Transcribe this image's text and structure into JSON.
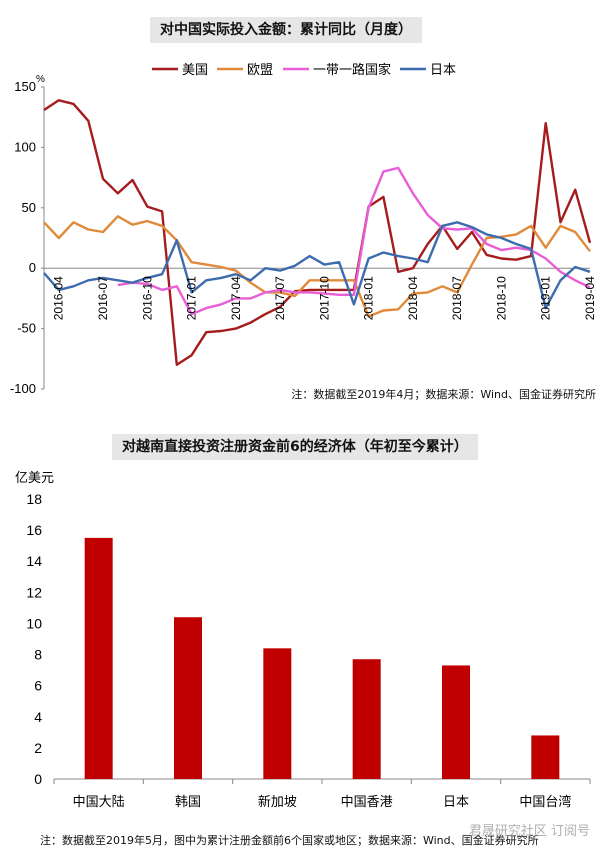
{
  "chart_data": [
    {
      "type": "line",
      "title": "对中国实际投入金额：累计同比（月度）",
      "ylabel": "%",
      "ylim": [
        -100,
        150
      ],
      "yticks": [
        150,
        100,
        50,
        0,
        -50,
        -100
      ],
      "xticks": [
        "2016-04",
        "2016-07",
        "2016-10",
        "2017-01",
        "2017-04",
        "2017-07",
        "2017-10",
        "2018-01",
        "2018-04",
        "2018-07",
        "2018-10",
        "2019-01",
        "2019-04"
      ],
      "x": [
        "2016-03",
        "2016-04",
        "2016-05",
        "2016-06",
        "2016-07",
        "2016-08",
        "2016-09",
        "2016-10",
        "2016-11",
        "2016-12",
        "2017-01",
        "2017-02",
        "2017-03",
        "2017-04",
        "2017-05",
        "2017-06",
        "2017-07",
        "2017-08",
        "2017-09",
        "2017-10",
        "2017-11",
        "2017-12",
        "2018-01",
        "2018-02",
        "2018-03",
        "2018-04",
        "2018-05",
        "2018-06",
        "2018-07",
        "2018-08",
        "2018-09",
        "2018-10",
        "2018-11",
        "2018-12",
        "2019-01",
        "2019-02",
        "2019-03",
        "2019-04"
      ],
      "legend_position": "top",
      "series": [
        {
          "name": "美国",
          "color": "#a61c1c",
          "values": [
            131,
            139,
            136,
            122,
            74,
            62,
            73,
            51,
            47,
            -80,
            -72,
            -53,
            -52,
            -50,
            -45,
            -38,
            -32,
            -19,
            -18,
            -18,
            -18,
            -18,
            51,
            59,
            -3,
            0,
            20,
            35,
            16,
            30,
            11,
            8,
            7,
            10,
            120,
            38,
            65,
            21
          ]
        },
        {
          "name": "欧盟",
          "color": "#e08a3a",
          "values": [
            38,
            25,
            38,
            32,
            30,
            43,
            36,
            39,
            35,
            23,
            5,
            3,
            1,
            -2,
            -12,
            -20,
            -20,
            -23,
            -10,
            -10,
            -10,
            -10,
            -40,
            -35,
            -34,
            -21,
            -20,
            -15,
            -20,
            3,
            25,
            26,
            28,
            35,
            17,
            35,
            30,
            14
          ]
        },
        {
          "name": "一带一路国家",
          "color": "#e85ed6",
          "values": [
            null,
            null,
            null,
            null,
            null,
            -14,
            -12,
            -13,
            -18,
            -15,
            -38,
            -33,
            -30,
            -25,
            -25,
            -20,
            -18,
            -20,
            -20,
            -21,
            -22,
            -22,
            50,
            80,
            83,
            62,
            44,
            33,
            32,
            33,
            20,
            15,
            17,
            15,
            8,
            -3,
            -10,
            -16
          ]
        },
        {
          "name": "日本",
          "color": "#3d6cae",
          "values": [
            -4,
            -18,
            -15,
            -10,
            -8,
            -10,
            -12,
            -8,
            -5,
            23,
            -20,
            -10,
            -8,
            -5,
            -10,
            0,
            -2,
            2,
            10,
            3,
            5,
            -30,
            8,
            13,
            10,
            8,
            5,
            35,
            38,
            34,
            28,
            25,
            20,
            16,
            -33,
            -10,
            1,
            -3
          ]
        }
      ],
      "annotation": "注：数据截至2019年4月；数据来源：Wind、国金证券研究所"
    },
    {
      "type": "bar",
      "title": "对越南直接投资注册资金前6的经济体（年初至今累计）",
      "ylabel": "亿美元",
      "ylim": [
        0,
        18
      ],
      "yticks": [
        0,
        2,
        4,
        6,
        8,
        10,
        12,
        14,
        16,
        18
      ],
      "categories": [
        "中国大陆",
        "韩国",
        "新加坡",
        "中国香港",
        "日本",
        "中国台湾"
      ],
      "values": [
        15.5,
        10.4,
        8.4,
        7.7,
        7.3,
        2.8
      ],
      "color": "#c00000",
      "annotation": "注：数据截至2019年5月，图中为累计注册金额前6个国家或地区；数据来源：Wind、国金证券研究所"
    }
  ],
  "watermark": "君晟研究社区 订阅号"
}
